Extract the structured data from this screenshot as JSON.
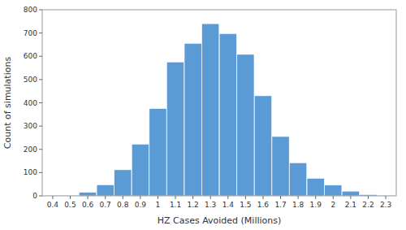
{
  "chart_data": {
    "type": "bar",
    "x": [
      0.4,
      0.5,
      0.6,
      0.7,
      0.8,
      0.9,
      1.0,
      1.1,
      1.2,
      1.3,
      1.4,
      1.5,
      1.6,
      1.7,
      1.8,
      1.9,
      2.0,
      2.1,
      2.2,
      2.3
    ],
    "values": [
      2,
      2,
      15,
      47,
      112,
      222,
      375,
      575,
      655,
      740,
      697,
      608,
      430,
      255,
      142,
      75,
      46,
      20,
      5,
      2
    ],
    "color": "#5b9bd5",
    "xlabel": "HZ Cases Avoided (Millions)",
    "ylabel": "Count of simulations",
    "xlim": [
      0.34,
      2.36
    ],
    "xticks": [
      0.4,
      0.5,
      0.6,
      0.7,
      0.8,
      0.9,
      1,
      1.1,
      1.2,
      1.3,
      1.4,
      1.5,
      1.6,
      1.7,
      1.8,
      1.9,
      2,
      2.1,
      2.2,
      2.3
    ],
    "ylim": [
      0,
      800
    ],
    "yticks": [
      0,
      100,
      200,
      300,
      400,
      500,
      600,
      700,
      800
    ],
    "grid": false
  }
}
